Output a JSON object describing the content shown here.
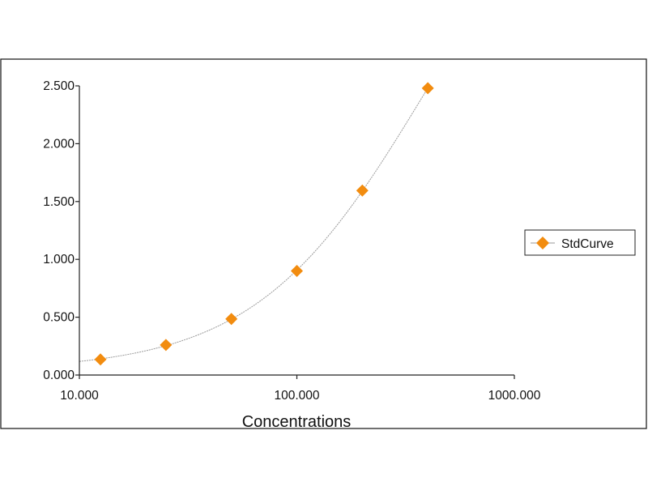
{
  "chart_data": {
    "type": "scatter",
    "title": "",
    "xlabel": "Concentrations",
    "ylabel": "",
    "x_scale": "log",
    "xlim": [
      10,
      1000
    ],
    "ylim": [
      0,
      2.5
    ],
    "x_ticks": [
      10,
      100,
      1000
    ],
    "x_tick_labels": [
      "10.000",
      "100.000",
      "1000.000"
    ],
    "y_ticks": [
      0,
      0.5,
      1.0,
      1.5,
      2.0,
      2.5
    ],
    "y_tick_labels": [
      "0.000",
      "0.500",
      "1.000",
      "1.500",
      "2.000",
      "2.500"
    ],
    "grid": false,
    "legend_position": "right",
    "series": [
      {
        "name": "StdCurve",
        "marker": "diamond",
        "color": "#f28c0f",
        "curve_color": "#9a9a9a",
        "x": [
          12.5,
          25,
          50,
          100,
          200,
          400
        ],
        "y": [
          0.135,
          0.26,
          0.485,
          0.9,
          1.595,
          2.48
        ]
      }
    ]
  }
}
